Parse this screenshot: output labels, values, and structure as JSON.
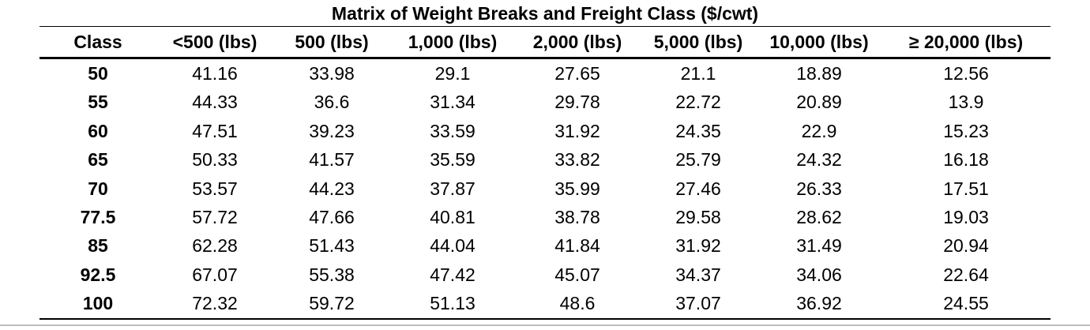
{
  "title": "Matrix of Weight Breaks and Freight Class ($/cwt)",
  "columns": [
    "Class",
    "<500 (lbs)",
    "500 (lbs)",
    "1,000 (lbs)",
    "2,000 (lbs)",
    "5,000 (lbs)",
    "10,000 (lbs)",
    "≥ 20,000 (lbs)"
  ],
  "rows": [
    [
      "50",
      "41.16",
      "33.98",
      "29.1",
      "27.65",
      "21.1",
      "18.89",
      "12.56"
    ],
    [
      "55",
      "44.33",
      "36.6",
      "31.34",
      "29.78",
      "22.72",
      "20.89",
      "13.9"
    ],
    [
      "60",
      "47.51",
      "39.23",
      "33.59",
      "31.92",
      "24.35",
      "22.9",
      "15.23"
    ],
    [
      "65",
      "50.33",
      "41.57",
      "35.59",
      "33.82",
      "25.79",
      "24.32",
      "16.18"
    ],
    [
      "70",
      "53.57",
      "44.23",
      "37.87",
      "35.99",
      "27.46",
      "26.33",
      "17.51"
    ],
    [
      "77.5",
      "57.72",
      "47.66",
      "40.81",
      "38.78",
      "29.58",
      "28.62",
      "19.03"
    ],
    [
      "85",
      "62.28",
      "51.43",
      "44.04",
      "41.84",
      "31.92",
      "31.49",
      "20.94"
    ],
    [
      "92.5",
      "67.07",
      "55.38",
      "47.42",
      "45.07",
      "34.37",
      "34.06",
      "22.64"
    ],
    [
      "100",
      "72.32",
      "59.72",
      "51.13",
      "48.6",
      "37.07",
      "36.92",
      "24.55"
    ]
  ]
}
